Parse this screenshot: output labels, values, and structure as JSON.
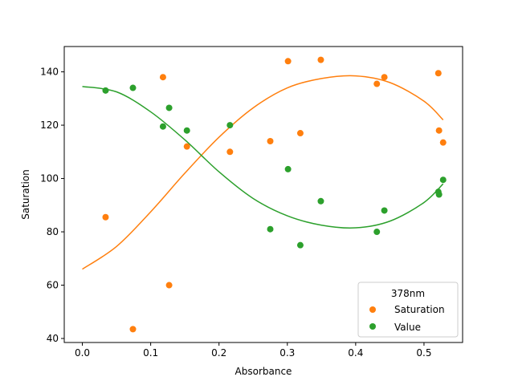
{
  "chart_data": {
    "type": "scatter",
    "xlabel": "Absorbance",
    "ylabel": "Saturation",
    "xlim": [
      -0.0265,
      0.5565
    ],
    "ylim": [
      38.5,
      149.5
    ],
    "xticks": [
      0.0,
      0.1,
      0.2,
      0.3,
      0.4,
      0.5
    ],
    "xtick_labels": [
      "0.0",
      "0.1",
      "0.2",
      "0.3",
      "0.4",
      "0.5"
    ],
    "yticks": [
      40,
      60,
      80,
      100,
      120,
      140
    ],
    "ytick_labels": [
      "40",
      "60",
      "80",
      "100",
      "120",
      "140"
    ],
    "grid": false,
    "legend": {
      "title": "378nm",
      "placement": "lower-right"
    },
    "series": [
      {
        "name": "Saturation",
        "color": "#ff7f0e",
        "x": [
          0.034,
          0.074,
          0.118,
          0.127,
          0.153,
          0.216,
          0.275,
          0.301,
          0.319,
          0.349,
          0.431,
          0.442,
          0.521,
          0.522,
          0.528
        ],
        "y": [
          85.5,
          43.5,
          138.0,
          60.0,
          112.0,
          110.0,
          114.0,
          144.0,
          117.0,
          144.5,
          135.5,
          138.0,
          139.5,
          118.0,
          113.5
        ],
        "fit": {
          "x": [
            0.0,
            0.05,
            0.1,
            0.15,
            0.2,
            0.25,
            0.3,
            0.35,
            0.4,
            0.45,
            0.5,
            0.528
          ],
          "y": [
            66.0,
            74.5,
            87.5,
            102.0,
            115.5,
            126.5,
            134.0,
            137.5,
            138.5,
            136.0,
            129.0,
            122.0
          ]
        }
      },
      {
        "name": "Value",
        "color": "#2ca02c",
        "x": [
          0.034,
          0.074,
          0.118,
          0.127,
          0.153,
          0.216,
          0.275,
          0.301,
          0.319,
          0.349,
          0.431,
          0.442,
          0.521,
          0.522,
          0.528
        ],
        "y": [
          133.0,
          134.0,
          119.5,
          126.5,
          118.0,
          120.0,
          81.0,
          103.5,
          75.0,
          91.5,
          80.0,
          88.0,
          95.0,
          94.0,
          99.5
        ],
        "fit": {
          "x": [
            0.0,
            0.05,
            0.1,
            0.15,
            0.2,
            0.25,
            0.3,
            0.35,
            0.4,
            0.45,
            0.5,
            0.528
          ],
          "y": [
            134.5,
            132.5,
            125.0,
            114.5,
            102.5,
            92.5,
            86.0,
            82.5,
            81.5,
            84.0,
            91.0,
            98.0
          ]
        }
      }
    ]
  }
}
